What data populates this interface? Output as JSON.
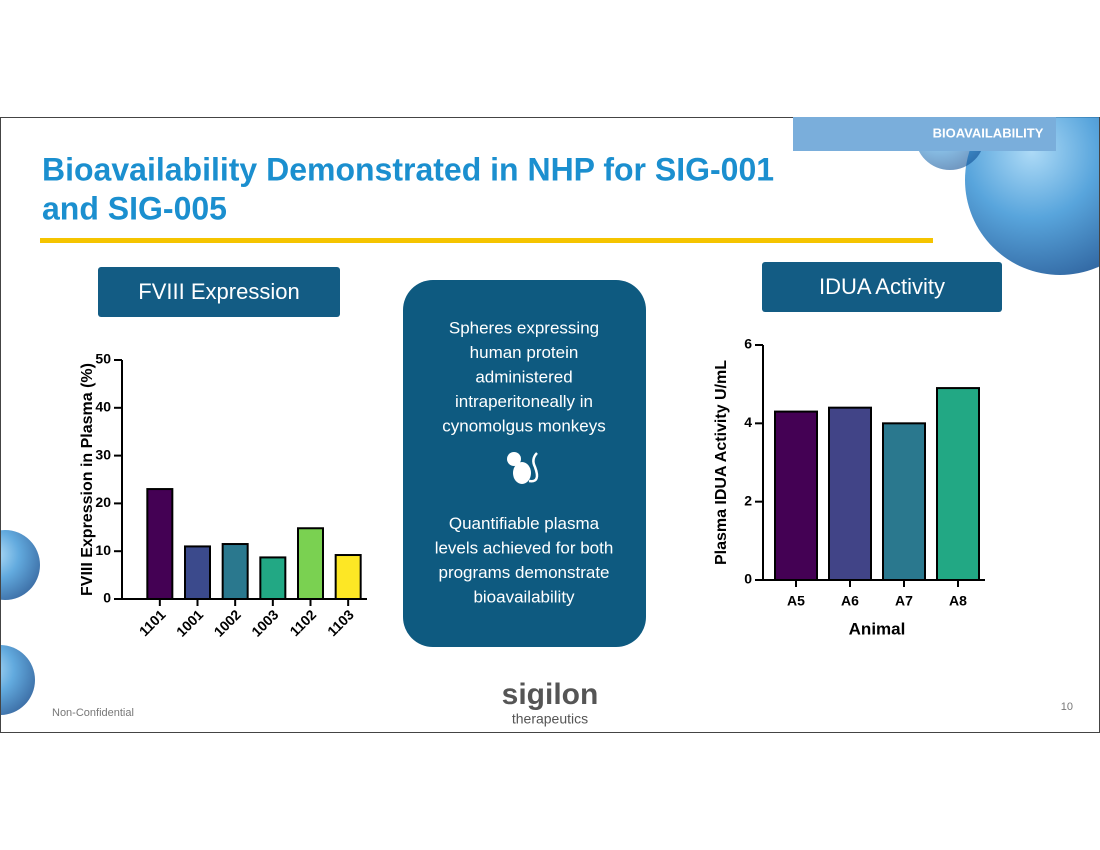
{
  "header": {
    "tag": "BIOAVAILABILITY",
    "title": [
      "Bioavailability Demonstrated in NHP for SIG-001",
      "and SIG-005"
    ]
  },
  "chart_data": [
    {
      "type": "bar",
      "title": "FVIII Expression",
      "ylabel": "FVIII Expression in Plasma (%)",
      "categories": [
        "1101",
        "1001",
        "1002",
        "1003",
        "1102",
        "1103"
      ],
      "values": [
        23,
        11,
        11.5,
        8.7,
        14.8,
        9.2
      ],
      "colors": [
        "#440154",
        "#3b4a8c",
        "#2a788e",
        "#22a884",
        "#7ad151",
        "#fde725"
      ],
      "ylim": [
        0,
        50
      ],
      "yticks": [
        0,
        10,
        20,
        30,
        40,
        50
      ]
    },
    {
      "type": "bar",
      "title": "IDUA Activity",
      "ylabel": "Plasma IDUA Activity U/mL",
      "xlabel": "Animal",
      "categories": [
        "A5",
        "A6",
        "A7",
        "A8"
      ],
      "values": [
        4.3,
        4.4,
        4.0,
        4.9
      ],
      "colors": [
        "#440154",
        "#414487",
        "#2a788e",
        "#22a884"
      ],
      "ylim": [
        0,
        6
      ],
      "yticks": [
        0,
        2,
        4,
        6
      ]
    }
  ],
  "center_box": {
    "paragraphs": [
      [
        "Spheres expressing",
        "human protein",
        "administered",
        "intraperitoneally in",
        "cynomolgus monkeys"
      ],
      [
        "Quantifiable plasma",
        "levels achieved for both",
        "programs demonstrate",
        "bioavailability"
      ]
    ]
  },
  "footer": {
    "confidentiality": "Non-Confidential",
    "logo": "sigilon",
    "logo_subtitle": "therapeutics",
    "page": "10"
  }
}
